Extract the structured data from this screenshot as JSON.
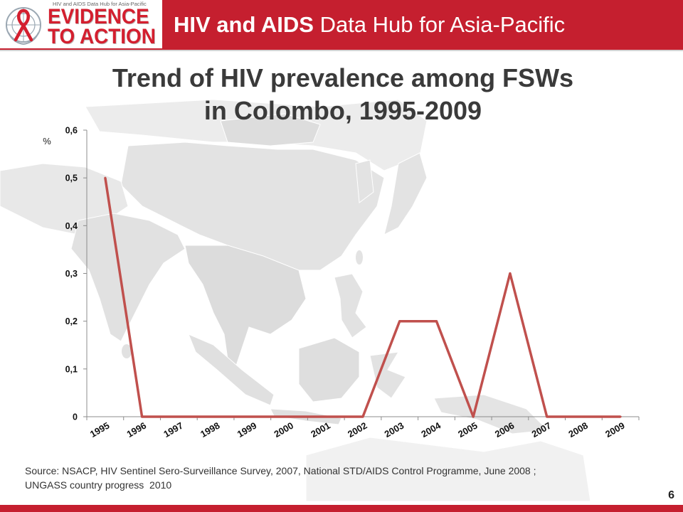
{
  "header": {
    "title_bold": "HIV and AIDS",
    "title_rest": "Data Hub for Asia-Pacific"
  },
  "logo": {
    "tagline": "HIV and AIDS Data Hub for Asia-Pacific",
    "line1": "EVIDENCE",
    "line2": "TO ACTION"
  },
  "icons": {
    "emblem": "un-emblem-icon",
    "ribbon": "red-ribbon-icon"
  },
  "colors": {
    "header_red": "#c51f2f",
    "logo_red": "#d41f2f",
    "title_text": "#3a3a3a",
    "map_gray": "#e3e3e3"
  },
  "chart_data": {
    "type": "line",
    "title_lines": [
      "Trend of HIV prevalence among FSWs",
      "in Colombo, 1995-2009"
    ],
    "xlabel": "",
    "ylabel": "%",
    "categories": [
      "1995",
      "1996",
      "1997",
      "1998",
      "1999",
      "2000",
      "2001",
      "2002",
      "2003",
      "2004",
      "2005",
      "2006",
      "2007",
      "2008",
      "2009"
    ],
    "series": [
      {
        "values": [
          0.5,
          0,
          0,
          0,
          0,
          0,
          0,
          0,
          0.2,
          0.2,
          0,
          0.3,
          0,
          0,
          0
        ],
        "color": "#c0504d"
      }
    ],
    "ylim": [
      0,
      0.6
    ],
    "yticks": [
      0,
      0.1,
      0.2,
      0.3,
      0.4,
      0.5,
      0.6
    ],
    "ytick_labels": [
      "0",
      "0,1",
      "0,2",
      "0,3",
      "0,4",
      "0,5",
      "0,6"
    ],
    "grid": false,
    "legend": "none",
    "markers": false
  },
  "footer": {
    "source_line1": "Source: NSACP, HIV Sentinel Sero-Surveillance Survey, 2007, National STD/AIDS Control Programme, June 2008 ;",
    "source_line2": "UNGASS country progress  2010",
    "page_number": "6"
  }
}
